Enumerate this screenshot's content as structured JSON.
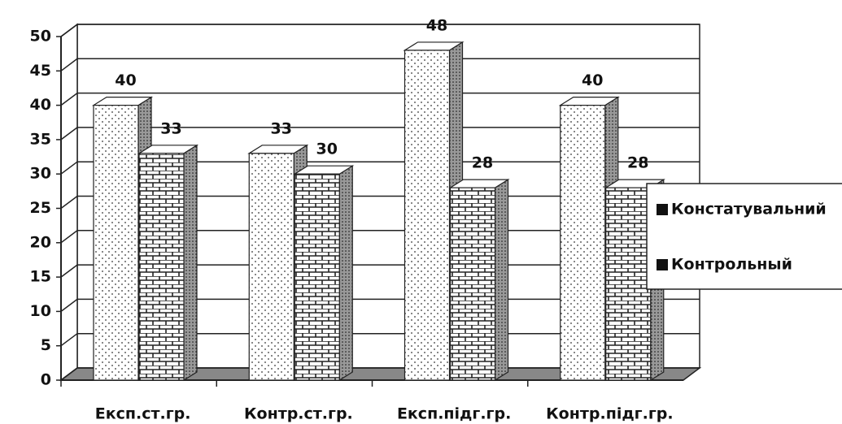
{
  "chart_data": {
    "type": "bar3d",
    "categories": [
      "Експ.ст.гр.",
      "Контр.ст.гр.",
      "Експ.підг.гр.",
      "Контр.підг.гр."
    ],
    "series": [
      {
        "name": "Констатувальний",
        "color": "#ffffff",
        "pattern": "dots",
        "values": [
          40,
          33,
          48,
          40
        ]
      },
      {
        "name": "Контрольный",
        "color": "#ffffff",
        "pattern": "bricks",
        "values": [
          33,
          30,
          28,
          28
        ]
      }
    ],
    "ylim": [
      0,
      50
    ],
    "yticks": [
      0,
      5,
      10,
      15,
      20,
      25,
      30,
      35,
      40,
      45,
      50
    ],
    "grid": true,
    "legend": "right",
    "data_labels": true
  }
}
